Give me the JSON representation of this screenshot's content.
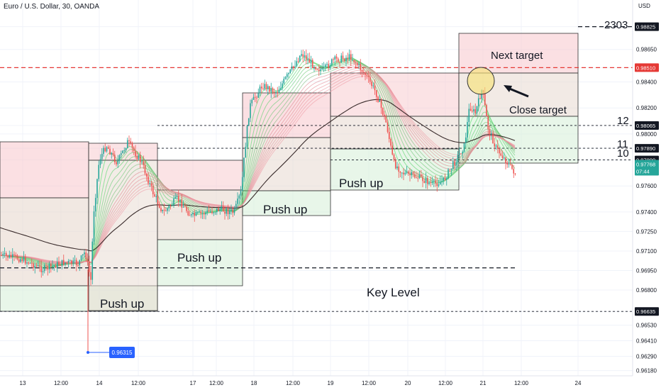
{
  "header": {
    "symbol_title": "Euro / U.S. Dollar, 30, OANDA",
    "currency": "USD"
  },
  "annotations": {
    "push_up": "Push up",
    "key_level": "Key Level",
    "next_target": "Next target",
    "close_target": "Close target",
    "label_2303": "2303",
    "label_12": "12",
    "label_11": "11",
    "label_10": "10",
    "low_badge": "0.96315"
  },
  "chart_data": {
    "type": "candlestick",
    "title": "Euro / U.S. Dollar, 30, OANDA",
    "ylabel": "USD",
    "ylim": [
      0.9614,
      0.9903
    ],
    "y_ticks": [
      "0.98825",
      "0.98650",
      "0.98510",
      "0.98400",
      "0.98200",
      "0.98065",
      "0.98000",
      "0.97890",
      "0.97800",
      "0.97768",
      "0.97600",
      "0.97400",
      "0.97250",
      "0.97100",
      "0.96950",
      "0.96800",
      "0.96635",
      "0.96530",
      "0.96410",
      "0.96290",
      "0.96180"
    ],
    "x_ticks": [
      "13",
      "12:00",
      "14",
      "12:00",
      "17",
      "12:00",
      "18",
      "12:00",
      "19",
      "12:00",
      "20",
      "12:00",
      "21",
      "12:00",
      "24"
    ],
    "price_levels": [
      {
        "price": 0.98825,
        "style": "dashed",
        "color": "#131722",
        "label": "2303"
      },
      {
        "price": 0.9851,
        "style": "dashed",
        "color": "#e53935"
      },
      {
        "price": 0.98065,
        "style": "dotted",
        "color": "#131722",
        "label": "12"
      },
      {
        "price": 0.9789,
        "style": "dotted",
        "color": "#131722",
        "label": "11"
      },
      {
        "price": 0.978,
        "style": "dotted",
        "color": "#131722",
        "label": "10"
      },
      {
        "price": 0.9697,
        "style": "dashed",
        "color": "#131722",
        "label": "Key Level"
      },
      {
        "price": 0.96635,
        "style": "dotted",
        "color": "#131722"
      }
    ],
    "last_price": {
      "price": "0.97768",
      "countdown": "07:44"
    },
    "low_marker": {
      "price": 0.96315,
      "label": "0.96315"
    },
    "colors": {
      "up": "#26a69a",
      "down": "#ef5350",
      "target_zone": "#f8c7cc",
      "push_zone": "#c8e6c9",
      "level_red": "#e53935"
    }
  }
}
